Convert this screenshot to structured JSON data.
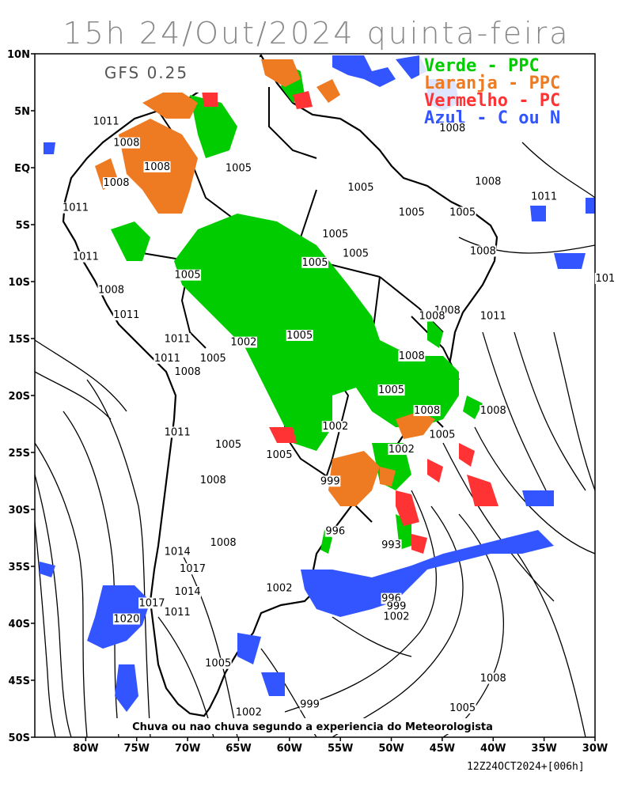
{
  "title": "15h 24/Out/2024 quinta-feira",
  "model": "GFS 0.25",
  "legend": [
    {
      "label": "Verde - PPC",
      "color": "#00cc00"
    },
    {
      "label": "Laranja - PPC",
      "color": "#ee7a22"
    },
    {
      "label": "Vermelho - PC",
      "color": "#ff3333"
    },
    {
      "label": "Azul - C ou N",
      "color": "#3355ff"
    }
  ],
  "note": "Chuva ou nao chuva segundo a experiencia do Meteorologista",
  "run_stamp": "12Z24OCT2024+[006h]",
  "lat_labels": [
    "10N",
    "5N",
    "EQ",
    "5S",
    "10S",
    "15S",
    "20S",
    "25S",
    "30S",
    "35S",
    "40S",
    "45S",
    "50S"
  ],
  "lon_labels": [
    "80W",
    "75W",
    "70W",
    "65W",
    "60W",
    "55W",
    "50W",
    "45W",
    "40W",
    "35W",
    "30W"
  ],
  "isobars": [
    {
      "v": "1008",
      "x": -44,
      "y": 3.2
    },
    {
      "v": "1011",
      "x": -78,
      "y": 3.8
    },
    {
      "v": "1008",
      "x": -76,
      "y": 1.9
    },
    {
      "v": "1008",
      "x": -73,
      "y": -0.2
    },
    {
      "v": "1008",
      "x": -77,
      "y": -1.6
    },
    {
      "v": "1011",
      "x": -81,
      "y": -3.8
    },
    {
      "v": "1005",
      "x": -65,
      "y": -0.3
    },
    {
      "v": "1008",
      "x": -40.5,
      "y": -1.5
    },
    {
      "v": "1005",
      "x": -53,
      "y": -2
    },
    {
      "v": "1011",
      "x": -35,
      "y": -2.8
    },
    {
      "v": "1005",
      "x": -48,
      "y": -4.2
    },
    {
      "v": "1005",
      "x": -43,
      "y": -4.2
    },
    {
      "v": "1005",
      "x": -55.5,
      "y": -6.1
    },
    {
      "v": "1005",
      "x": -53.5,
      "y": -7.8
    },
    {
      "v": "1008",
      "x": -41,
      "y": -7.6
    },
    {
      "v": "1011",
      "x": -80,
      "y": -8.1
    },
    {
      "v": "1005",
      "x": -57.5,
      "y": -8.6
    },
    {
      "v": "1005",
      "x": -70,
      "y": -9.7
    },
    {
      "v": "1008",
      "x": -77.5,
      "y": -11
    },
    {
      "v": "101",
      "x": -29,
      "y": -10
    },
    {
      "v": "1011",
      "x": -76,
      "y": -13.2
    },
    {
      "v": "1008",
      "x": -44.5,
      "y": -12.8
    },
    {
      "v": "1008",
      "x": -46,
      "y": -13.3
    },
    {
      "v": "1011",
      "x": -40,
      "y": -13.3
    },
    {
      "v": "1011",
      "x": -71,
      "y": -15.3
    },
    {
      "v": "1002",
      "x": -64.5,
      "y": -15.6
    },
    {
      "v": "1005",
      "x": -59,
      "y": -15
    },
    {
      "v": "1011",
      "x": -72,
      "y": -17
    },
    {
      "v": "1005",
      "x": -67.5,
      "y": -17
    },
    {
      "v": "1008",
      "x": -70,
      "y": -18.2
    },
    {
      "v": "1008",
      "x": -48,
      "y": -16.8
    },
    {
      "v": "1005",
      "x": -50,
      "y": -19.8
    },
    {
      "v": "1008",
      "x": -46.5,
      "y": -21.6
    },
    {
      "v": "1008",
      "x": -40,
      "y": -21.6
    },
    {
      "v": "1002",
      "x": -55.5,
      "y": -23
    },
    {
      "v": "1011",
      "x": -71,
      "y": -23.5
    },
    {
      "v": "1005",
      "x": -45,
      "y": -23.7
    },
    {
      "v": "1005",
      "x": -66,
      "y": -24.6
    },
    {
      "v": "1005",
      "x": -61,
      "y": -25.5
    },
    {
      "v": "1002",
      "x": -49,
      "y": -25
    },
    {
      "v": "1008",
      "x": -67.5,
      "y": -27.7
    },
    {
      "v": "999",
      "x": -56,
      "y": -27.8
    },
    {
      "v": "1008",
      "x": -66.5,
      "y": -33.2
    },
    {
      "v": "996",
      "x": -55.5,
      "y": -32.2
    },
    {
      "v": "993",
      "x": -50,
      "y": -33.4
    },
    {
      "v": "1014",
      "x": -71,
      "y": -34
    },
    {
      "v": "1017",
      "x": -69.5,
      "y": -35.5
    },
    {
      "v": "1014",
      "x": -70,
      "y": -37.5
    },
    {
      "v": "1002",
      "x": -61,
      "y": -37.2
    },
    {
      "v": "1017",
      "x": -73.5,
      "y": -38.5
    },
    {
      "v": "1011",
      "x": -71,
      "y": -39.3
    },
    {
      "v": "1020",
      "x": -76,
      "y": -39.9
    },
    {
      "v": "996",
      "x": -50,
      "y": -38.1
    },
    {
      "v": "999",
      "x": -49.5,
      "y": -38.8
    },
    {
      "v": "1002",
      "x": -49.5,
      "y": -39.7
    },
    {
      "v": "1005",
      "x": -67,
      "y": -43.8
    },
    {
      "v": "1008",
      "x": -40,
      "y": -45.1
    },
    {
      "v": "999",
      "x": -58,
      "y": -47.4
    },
    {
      "v": "1005",
      "x": -43,
      "y": -47.7
    },
    {
      "v": "1002",
      "x": -64,
      "y": -48.1
    }
  ]
}
